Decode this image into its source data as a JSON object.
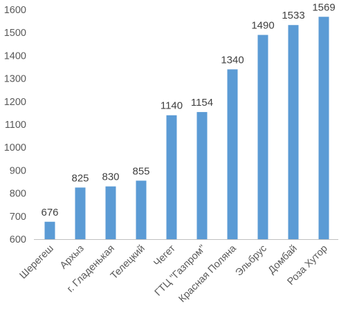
{
  "chart_data": {
    "type": "bar",
    "categories": [
      "Шерегеш",
      "Архыз",
      "г. Гладенькая",
      "Телецкий",
      "Чегет",
      "ГТЦ \"Газпром\"",
      "Красная Поляна",
      "Эльбрус",
      "Домбай",
      "Роза Хутор"
    ],
    "values": [
      676,
      825,
      830,
      855,
      1140,
      1154,
      1340,
      1490,
      1533,
      1569
    ],
    "title": "",
    "xlabel": "",
    "ylabel": "",
    "ylim": [
      600,
      1600
    ],
    "y_ticks": [
      600,
      700,
      800,
      900,
      1000,
      1100,
      1200,
      1300,
      1400,
      1500,
      1600
    ],
    "data_labels": true,
    "grid": false,
    "legend": "none",
    "bar_color": "#5b9bd5",
    "axis_color": "#bfbfbf",
    "text_color": "#595959"
  }
}
